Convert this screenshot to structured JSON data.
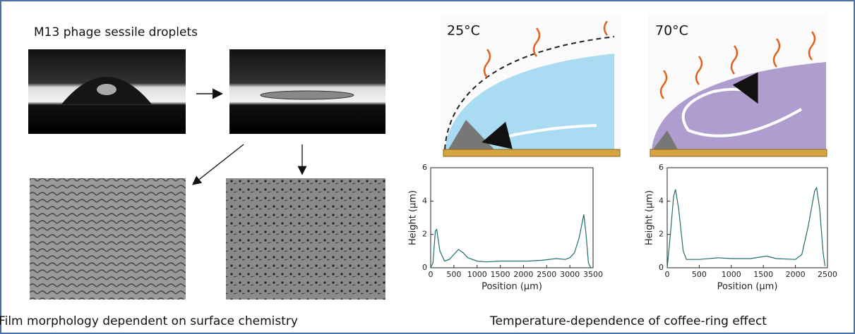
{
  "title": "M13 phage sessile droplets",
  "caption_left": "Film morphology dependent on surface chemistry",
  "caption_right": "Temperature-dependence of coffee-ring effect",
  "panel_labels": [
    "25°C",
    "70°C"
  ],
  "chart_data": [
    {
      "type": "line",
      "xlabel": "Position (μm)",
      "ylabel": "Height (μm)",
      "color": "#1f6e6e",
      "x": [
        0,
        50,
        100,
        130,
        200,
        300,
        400,
        500,
        600,
        700,
        800,
        1000,
        1200,
        1500,
        1800,
        2100,
        2400,
        2700,
        2900,
        3000,
        3100,
        3200,
        3300,
        3350,
        3400,
        3450
      ],
      "values": [
        0,
        0.3,
        2.2,
        2.3,
        1.0,
        0.4,
        0.5,
        0.8,
        1.1,
        0.9,
        0.6,
        0.4,
        0.35,
        0.4,
        0.4,
        0.4,
        0.45,
        0.55,
        0.5,
        0.6,
        0.9,
        1.8,
        3.2,
        2.0,
        0.3,
        0
      ],
      "xlim": [
        0,
        3500
      ],
      "ylim": [
        0,
        6
      ],
      "xticks": [
        0,
        500,
        1000,
        1500,
        2000,
        2500,
        3000,
        3500
      ],
      "yticks": [
        0,
        2,
        4,
        6
      ]
    },
    {
      "type": "line",
      "xlabel": "Position (μm)",
      "ylabel": "Height (μm)",
      "color": "#1f6e6e",
      "x": [
        0,
        50,
        100,
        130,
        180,
        250,
        300,
        500,
        800,
        1000,
        1300,
        1550,
        1700,
        2000,
        2100,
        2200,
        2300,
        2330,
        2380,
        2430,
        2460
      ],
      "values": [
        0,
        2,
        4.3,
        4.7,
        3.5,
        1.0,
        0.5,
        0.5,
        0.6,
        0.55,
        0.55,
        0.7,
        0.55,
        0.5,
        0.8,
        2.5,
        4.6,
        4.8,
        3.5,
        1.0,
        0.1
      ],
      "xlim": [
        0,
        2500
      ],
      "ylim": [
        0,
        6
      ],
      "xticks": [
        0,
        500,
        1000,
        1500,
        2000,
        2500
      ],
      "yticks": [
        0,
        2,
        4,
        6
      ]
    }
  ]
}
